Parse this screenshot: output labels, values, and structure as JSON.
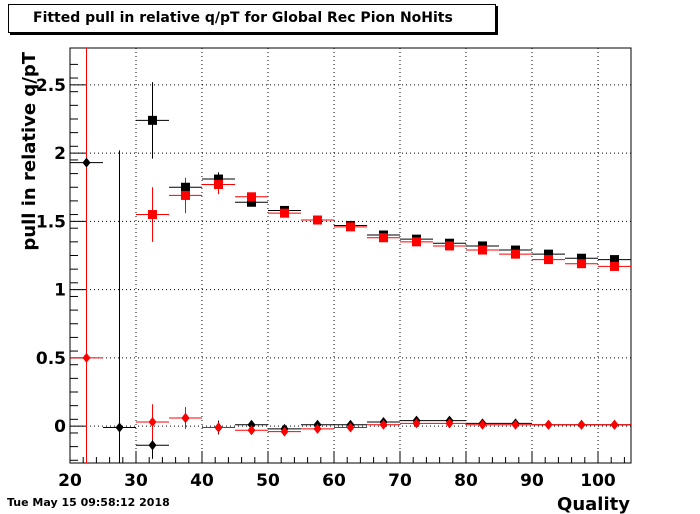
{
  "title": "Fitted pull in relative q/pT for Global Rec Pion NoHits",
  "timestamp": "Tue May 15 09:58:12 2018",
  "chart_data": {
    "type": "scatter",
    "title": "Fitted pull in relative q/pT for Global Rec Pion NoHits",
    "xlabel": "Quality",
    "ylabel": "pull in relative q/pT",
    "xlim": [
      20,
      105
    ],
    "ylim": [
      -0.27,
      2.77
    ],
    "xticks": [
      20,
      30,
      40,
      50,
      60,
      70,
      80,
      90,
      100
    ],
    "xtick_labels": [
      "20",
      "30",
      "40",
      "50",
      "60",
      "70",
      "80",
      "90",
      "100"
    ],
    "yticks": [
      0,
      0.5,
      1,
      1.5,
      2,
      2.5
    ],
    "ytick_labels": [
      "0",
      "0.5",
      "1",
      "1.5",
      "2",
      "2.5"
    ],
    "grid": true,
    "bin_half_width": 2.5,
    "series": [
      {
        "marker": "square",
        "color": "#000000",
        "points": [
          {
            "x": 32.5,
            "y": 2.24,
            "yerr": 0.28
          },
          {
            "x": 37.5,
            "y": 1.75,
            "yerr": 0.06
          },
          {
            "x": 42.5,
            "y": 1.81,
            "yerr": 0.05
          },
          {
            "x": 47.5,
            "y": 1.64,
            "yerr": 0.03
          },
          {
            "x": 52.5,
            "y": 1.58,
            "yerr": 0.02
          },
          {
            "x": 57.5,
            "y": 1.51,
            "yerr": 0.02
          },
          {
            "x": 62.5,
            "y": 1.47,
            "yerr": 0.02
          },
          {
            "x": 67.5,
            "y": 1.4,
            "yerr": 0.02
          },
          {
            "x": 72.5,
            "y": 1.37,
            "yerr": 0.02
          },
          {
            "x": 77.5,
            "y": 1.34,
            "yerr": 0.02
          },
          {
            "x": 82.5,
            "y": 1.32,
            "yerr": 0.02
          },
          {
            "x": 87.5,
            "y": 1.29,
            "yerr": 0.02
          },
          {
            "x": 92.5,
            "y": 1.26,
            "yerr": 0.02
          },
          {
            "x": 97.5,
            "y": 1.23,
            "yerr": 0.02
          },
          {
            "x": 102.5,
            "y": 1.22,
            "yerr": 0.02
          }
        ]
      },
      {
        "marker": "square",
        "color": "#ff0000",
        "points": [
          {
            "x": 32.5,
            "y": 1.55,
            "yerr": 0.2
          },
          {
            "x": 37.5,
            "y": 1.69,
            "yerr": 0.13
          },
          {
            "x": 42.5,
            "y": 1.77,
            "yerr": 0.07
          },
          {
            "x": 47.5,
            "y": 1.68,
            "yerr": 0.03
          },
          {
            "x": 52.5,
            "y": 1.56,
            "yerr": 0.02
          },
          {
            "x": 57.5,
            "y": 1.51,
            "yerr": 0.02
          },
          {
            "x": 62.5,
            "y": 1.46,
            "yerr": 0.02
          },
          {
            "x": 67.5,
            "y": 1.38,
            "yerr": 0.02
          },
          {
            "x": 72.5,
            "y": 1.35,
            "yerr": 0.02
          },
          {
            "x": 77.5,
            "y": 1.32,
            "yerr": 0.02
          },
          {
            "x": 82.5,
            "y": 1.29,
            "yerr": 0.02
          },
          {
            "x": 87.5,
            "y": 1.26,
            "yerr": 0.02
          },
          {
            "x": 92.5,
            "y": 1.22,
            "yerr": 0.02
          },
          {
            "x": 97.5,
            "y": 1.19,
            "yerr": 0.02
          },
          {
            "x": 102.5,
            "y": 1.17,
            "yerr": 0.02
          }
        ]
      },
      {
        "marker": "diamond",
        "color": "#000000",
        "points": [
          {
            "x": 22.5,
            "y": 1.93,
            "yerr": 0.02
          },
          {
            "x": 27.5,
            "y": -0.01,
            "yerr": 2.03
          },
          {
            "x": 32.5,
            "y": -0.14,
            "yerr": 0.1
          },
          {
            "x": 37.5,
            "y": 0.06,
            "yerr": 0.05
          },
          {
            "x": 42.5,
            "y": -0.01,
            "yerr": 0.05
          },
          {
            "x": 47.5,
            "y": 0.01,
            "yerr": 0.02
          },
          {
            "x": 52.5,
            "y": -0.02,
            "yerr": 0.01
          },
          {
            "x": 57.5,
            "y": 0.01,
            "yerr": 0.01
          },
          {
            "x": 62.5,
            "y": 0.01,
            "yerr": 0.01
          },
          {
            "x": 67.5,
            "y": 0.03,
            "yerr": 0.01
          },
          {
            "x": 72.5,
            "y": 0.04,
            "yerr": 0.01
          },
          {
            "x": 77.5,
            "y": 0.04,
            "yerr": 0.01
          },
          {
            "x": 82.5,
            "y": 0.02,
            "yerr": 0.01
          },
          {
            "x": 87.5,
            "y": 0.02,
            "yerr": 0.01
          },
          {
            "x": 92.5,
            "y": 0.01,
            "yerr": 0.01
          },
          {
            "x": 97.5,
            "y": 0.01,
            "yerr": 0.01
          },
          {
            "x": 102.5,
            "y": 0.01,
            "yerr": 0.01
          }
        ]
      },
      {
        "marker": "diamond",
        "color": "#ff0000",
        "points": [
          {
            "x": 22.5,
            "y": 0.5,
            "yerr": 2.8
          },
          {
            "x": 32.5,
            "y": 0.03,
            "yerr": 0.13
          },
          {
            "x": 37.5,
            "y": 0.06,
            "yerr": 0.08
          },
          {
            "x": 42.5,
            "y": -0.01,
            "yerr": 0.04
          },
          {
            "x": 47.5,
            "y": -0.03,
            "yerr": 0.02
          },
          {
            "x": 52.5,
            "y": -0.04,
            "yerr": 0.01
          },
          {
            "x": 57.5,
            "y": -0.02,
            "yerr": 0.01
          },
          {
            "x": 62.5,
            "y": -0.01,
            "yerr": 0.01
          },
          {
            "x": 67.5,
            "y": 0.01,
            "yerr": 0.01
          },
          {
            "x": 72.5,
            "y": 0.02,
            "yerr": 0.01
          },
          {
            "x": 77.5,
            "y": 0.02,
            "yerr": 0.01
          },
          {
            "x": 82.5,
            "y": 0.01,
            "yerr": 0.01
          },
          {
            "x": 87.5,
            "y": 0.01,
            "yerr": 0.01
          },
          {
            "x": 92.5,
            "y": 0.01,
            "yerr": 0.01
          },
          {
            "x": 97.5,
            "y": 0.01,
            "yerr": 0.01
          },
          {
            "x": 102.5,
            "y": 0.01,
            "yerr": 0.01
          }
        ]
      }
    ]
  }
}
